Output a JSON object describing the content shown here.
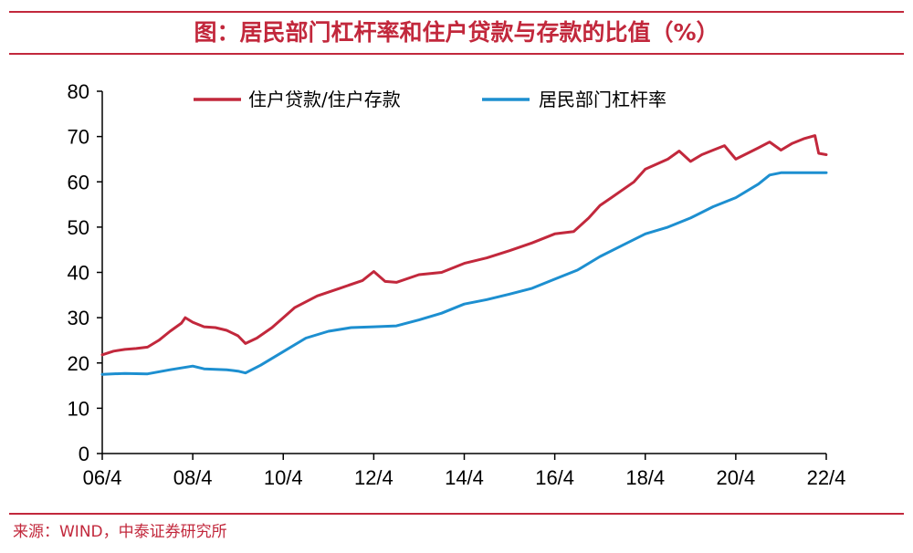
{
  "title": "图：居民部门杠杆率和住户贷款与存款的比值（%）",
  "source": "来源：WIND，中泰证券研究所",
  "colors": {
    "accent": "#c2283c",
    "series_red": "#c2283c",
    "series_blue": "#1d8fd0"
  },
  "chart_data": {
    "type": "line",
    "title": "图：居民部门杠杆率和住户贷款与存款的比值（%）",
    "xlabel": "",
    "ylabel": "",
    "ylim": [
      0,
      80
    ],
    "yticks": [
      0,
      10,
      20,
      30,
      40,
      50,
      60,
      70,
      80
    ],
    "xticks": [
      "06/4",
      "08/4",
      "10/4",
      "12/4",
      "14/4",
      "16/4",
      "18/4",
      "20/4",
      "22/4"
    ],
    "x_range": [
      "2006-04",
      "2022-04"
    ],
    "grid": false,
    "legend_position": "top",
    "series": [
      {
        "name": "住户贷款/住户存款",
        "color": "#c2283c",
        "points": [
          [
            "2006-04",
            21.8
          ],
          [
            "2006-07",
            22.6
          ],
          [
            "2006-10",
            23.0
          ],
          [
            "2007-01",
            23.2
          ],
          [
            "2007-04",
            23.5
          ],
          [
            "2007-07",
            25.0
          ],
          [
            "2007-10",
            27.0
          ],
          [
            "2008-01",
            28.8
          ],
          [
            "2008-02",
            30.0
          ],
          [
            "2008-04",
            29.0
          ],
          [
            "2008-07",
            28.0
          ],
          [
            "2008-10",
            27.8
          ],
          [
            "2009-01",
            27.2
          ],
          [
            "2009-04",
            26.0
          ],
          [
            "2009-06",
            24.3
          ],
          [
            "2009-09",
            25.5
          ],
          [
            "2010-01",
            27.8
          ],
          [
            "2010-04",
            30.0
          ],
          [
            "2010-07",
            32.2
          ],
          [
            "2011-01",
            34.8
          ],
          [
            "2011-07",
            36.5
          ],
          [
            "2012-01",
            38.2
          ],
          [
            "2012-04",
            40.2
          ],
          [
            "2012-07",
            38.0
          ],
          [
            "2012-10",
            37.8
          ],
          [
            "2013-04",
            39.5
          ],
          [
            "2013-10",
            40.0
          ],
          [
            "2014-04",
            42.0
          ],
          [
            "2014-10",
            43.2
          ],
          [
            "2015-04",
            44.8
          ],
          [
            "2015-10",
            46.5
          ],
          [
            "2016-04",
            48.5
          ],
          [
            "2016-09",
            49.0
          ],
          [
            "2017-01",
            52.0
          ],
          [
            "2017-04",
            54.8
          ],
          [
            "2017-07",
            56.5
          ],
          [
            "2018-01",
            60.0
          ],
          [
            "2018-04",
            62.8
          ],
          [
            "2018-10",
            65.0
          ],
          [
            "2019-01",
            66.8
          ],
          [
            "2019-04",
            64.5
          ],
          [
            "2019-07",
            66.0
          ],
          [
            "2019-10",
            67.0
          ],
          [
            "2020-01",
            68.0
          ],
          [
            "2020-04",
            65.0
          ],
          [
            "2020-10",
            67.5
          ],
          [
            "2021-01",
            68.8
          ],
          [
            "2021-04",
            67.0
          ],
          [
            "2021-07",
            68.5
          ],
          [
            "2021-10",
            69.5
          ],
          [
            "2022-01",
            70.2
          ],
          [
            "2022-02",
            66.3
          ],
          [
            "2022-04",
            66.0
          ]
        ]
      },
      {
        "name": "居民部门杠杆率",
        "color": "#1d8fd0",
        "points": [
          [
            "2006-04",
            17.5
          ],
          [
            "2006-10",
            17.7
          ],
          [
            "2007-04",
            17.6
          ],
          [
            "2007-10",
            18.5
          ],
          [
            "2008-04",
            19.3
          ],
          [
            "2008-07",
            18.7
          ],
          [
            "2009-01",
            18.5
          ],
          [
            "2009-04",
            18.2
          ],
          [
            "2009-06",
            17.8
          ],
          [
            "2009-10",
            19.5
          ],
          [
            "2010-04",
            22.5
          ],
          [
            "2010-10",
            25.5
          ],
          [
            "2011-04",
            27.0
          ],
          [
            "2011-10",
            27.8
          ],
          [
            "2012-04",
            28.0
          ],
          [
            "2012-10",
            28.2
          ],
          [
            "2013-04",
            29.5
          ],
          [
            "2013-10",
            31.0
          ],
          [
            "2014-04",
            33.0
          ],
          [
            "2014-10",
            34.0
          ],
          [
            "2015-04",
            35.2
          ],
          [
            "2015-10",
            36.5
          ],
          [
            "2016-04",
            38.5
          ],
          [
            "2016-10",
            40.5
          ],
          [
            "2017-04",
            43.5
          ],
          [
            "2017-10",
            46.0
          ],
          [
            "2018-04",
            48.5
          ],
          [
            "2018-10",
            50.0
          ],
          [
            "2019-04",
            52.0
          ],
          [
            "2019-10",
            54.5
          ],
          [
            "2020-04",
            56.5
          ],
          [
            "2020-10",
            59.5
          ],
          [
            "2021-01",
            61.5
          ],
          [
            "2021-04",
            62.0
          ],
          [
            "2021-10",
            62.0
          ],
          [
            "2022-04",
            62.0
          ]
        ]
      }
    ]
  }
}
